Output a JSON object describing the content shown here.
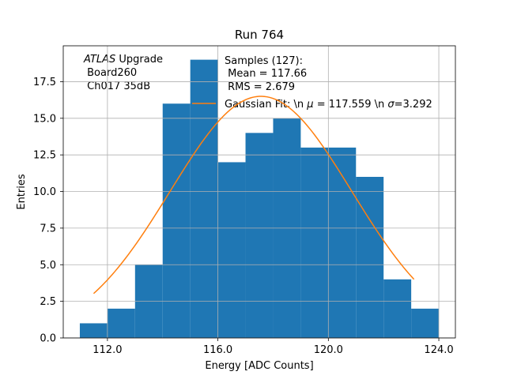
{
  "chart_data": {
    "type": "bar",
    "title": "Run 764",
    "xlabel": "Energy [ADC Counts]",
    "ylabel": "Entries",
    "xlim": [
      110.4,
      124.6
    ],
    "ylim": [
      0,
      19.95
    ],
    "grid": true,
    "bin_edges": [
      111,
      112,
      113,
      114,
      115,
      116,
      117,
      118,
      119,
      120,
      121,
      122,
      123,
      124
    ],
    "counts": [
      1,
      2,
      5,
      16,
      19,
      12,
      14,
      15,
      13,
      13,
      11,
      4,
      2
    ],
    "bar_color": "#1f77b4",
    "x_ticks": [
      112,
      116,
      120,
      124
    ],
    "x_tick_labels": [
      "112.0",
      "116.0",
      "120.0",
      "124.0"
    ],
    "y_ticks": [
      0,
      2.5,
      5,
      7.5,
      10,
      12.5,
      15,
      17.5
    ],
    "y_tick_labels": [
      "0.0",
      "2.5",
      "5.0",
      "7.5",
      "10.0",
      "12.5",
      "15.0",
      "17.5"
    ],
    "fit": {
      "mu": 117.559,
      "sigma": 3.292,
      "amplitude": 16.5,
      "x_range": [
        111.5,
        123.1
      ],
      "color": "#ff7f0e"
    },
    "annotation": {
      "experiment": "ATLAS",
      "experiment_suffix": " Upgrade",
      "board": " Board260",
      "channel": " Ch017 35dB"
    },
    "legend": {
      "placement": "top-center",
      "samples_line1": "Samples (127):",
      "samples_line2": " Mean = 117.66",
      "samples_line3": " RMS = 2.679",
      "fit_label_prefix": "Gaussian Fit: \\n ",
      "mu_symbol": "μ",
      "fit_label_mid": " = 117.559 \\n ",
      "sigma_symbol": "σ",
      "fit_label_end": "=3.292"
    }
  }
}
